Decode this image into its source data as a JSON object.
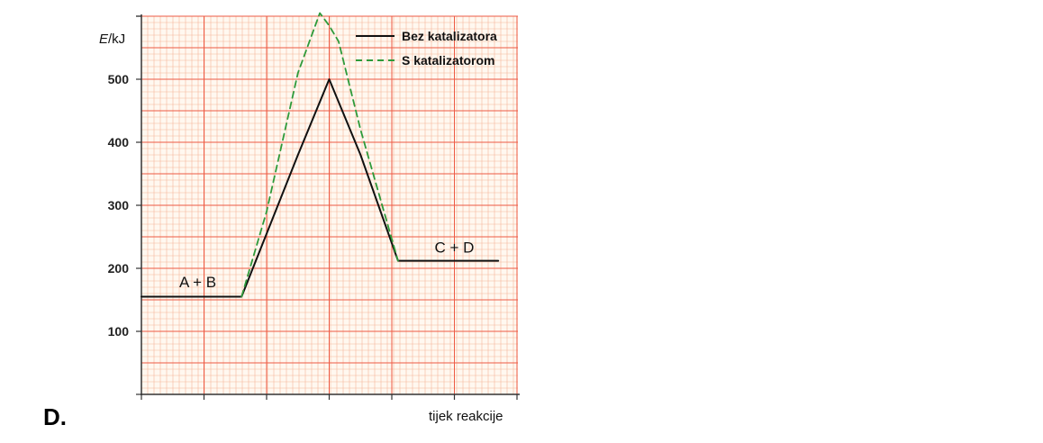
{
  "option_letter": "D.",
  "chart_data": {
    "type": "line",
    "ylabel_italic": "E",
    "ylabel_unit": "/kJ",
    "xlabel": "tijek reakcije",
    "yticks": [
      100,
      200,
      300,
      400,
      500
    ],
    "ylim": [
      0,
      600
    ],
    "xlim": [
      0,
      6
    ],
    "grid": true,
    "legend_position": "top-right",
    "series": [
      {
        "name": "Bez katalizatora",
        "color": "#111111",
        "style": "solid",
        "x": [
          0,
          1.6,
          2.5,
          3.0,
          3.5,
          4.1,
          5.7
        ],
        "y": [
          155,
          155,
          380,
          500,
          380,
          212,
          212
        ]
      },
      {
        "name": "S katalizatorom",
        "color": "#2e9a3a",
        "style": "dashed",
        "x": [
          1.6,
          2.0,
          2.5,
          2.85,
          3.0,
          3.15,
          3.5,
          4.1
        ],
        "y": [
          155,
          290,
          510,
          605,
          585,
          560,
          420,
          212
        ]
      }
    ],
    "annotations": [
      {
        "text": "A + B",
        "x": 0.9,
        "y": 170
      },
      {
        "text": "C + D",
        "x": 5.0,
        "y": 225
      }
    ]
  }
}
